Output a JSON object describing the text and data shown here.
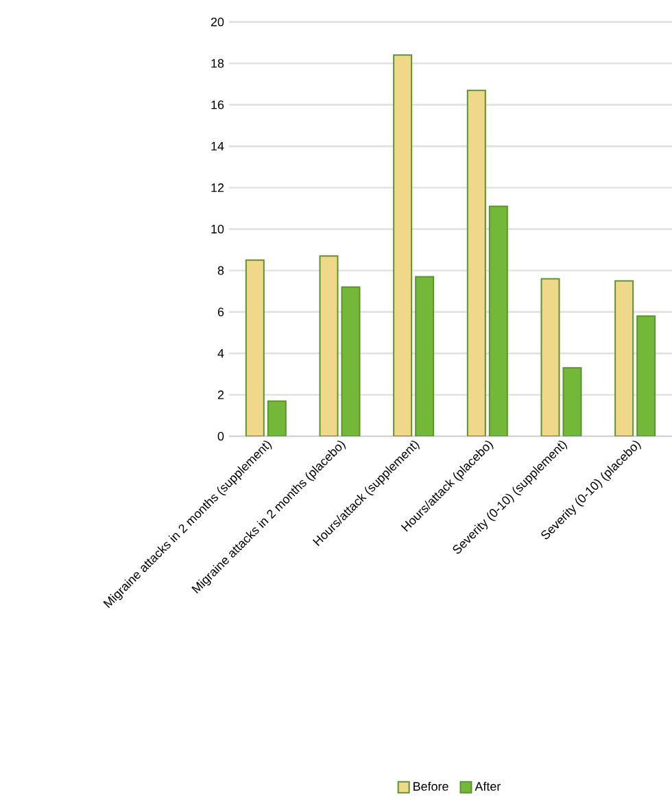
{
  "chart_data": {
    "type": "bar",
    "categories": [
      "Migraine attacks in 2 months (supplement)",
      "Migraine attacks in 2 months (placebo)",
      "Hours/attack (supplement)",
      "Hours/attack (placebo)",
      "Severity (0-10) (supplement)",
      "Severity (0-10) (placebo)"
    ],
    "series": [
      {
        "name": "Before",
        "color": "#f0d88a",
        "values": [
          8.5,
          8.7,
          18.4,
          16.7,
          7.6,
          7.5
        ]
      },
      {
        "name": "After",
        "color": "#74b83a",
        "values": [
          1.7,
          7.2,
          7.7,
          11.1,
          3.3,
          5.8
        ]
      }
    ],
    "ylim": [
      0,
      20
    ],
    "yticks": [
      0,
      2,
      4,
      6,
      8,
      10,
      12,
      14,
      16,
      18,
      20
    ],
    "grid": "y",
    "legend": "bottom"
  }
}
